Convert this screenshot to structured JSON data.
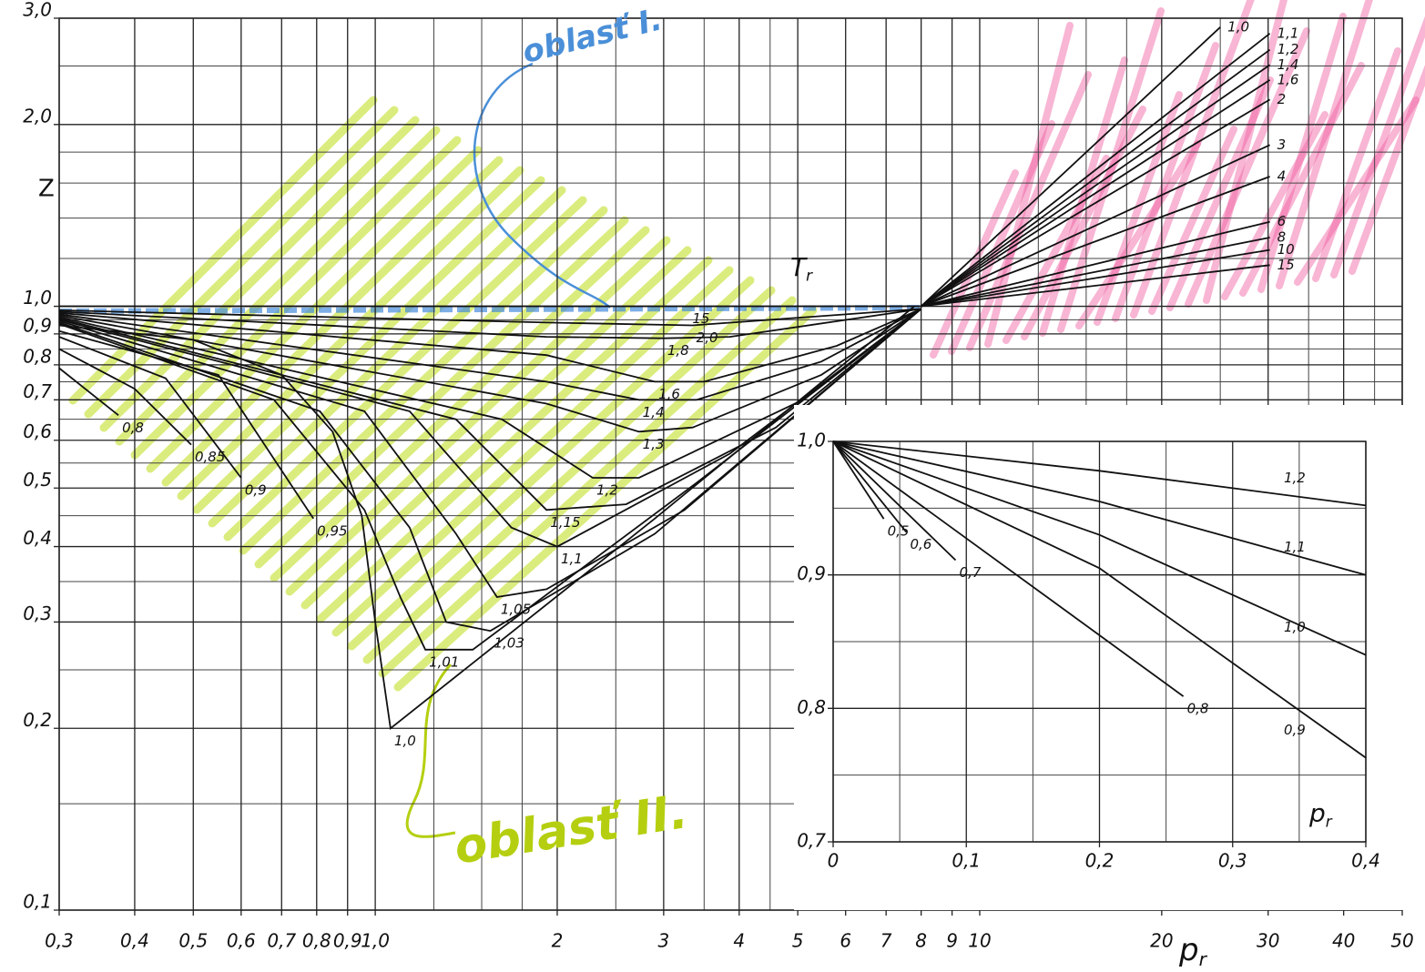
{
  "chart_data": [
    {
      "type": "line",
      "log_x": true,
      "log_y": true,
      "color": "#111",
      "xlim": [
        0.3,
        50
      ],
      "ylim": [
        0.1,
        3.0
      ],
      "xticks": [
        {
          "value": 0.3,
          "label": "0,3"
        },
        {
          "value": 0.4,
          "label": "0,4"
        },
        {
          "value": 0.5,
          "label": "0,5"
        },
        {
          "value": 0.6,
          "label": "0,6"
        },
        {
          "value": 0.7,
          "label": "0,7"
        },
        {
          "value": 0.8,
          "label": "0,8"
        },
        {
          "value": 0.9,
          "label": "0,9"
        },
        {
          "value": 1.0,
          "label": "1,0"
        },
        2,
        3,
        4,
        5,
        6,
        7,
        8,
        9,
        10,
        20,
        30,
        40,
        50
      ],
      "yticks": [
        {
          "value": 0.1,
          "label": "0,1"
        },
        {
          "value": 0.2,
          "label": "0,2"
        },
        {
          "value": 0.3,
          "label": "0,3"
        },
        {
          "value": 0.4,
          "label": "0,4"
        },
        {
          "value": 0.5,
          "label": "0,5"
        },
        {
          "value": 0.6,
          "label": "0,6"
        },
        {
          "value": 0.7,
          "label": "0,7"
        },
        {
          "value": 0.8,
          "label": "0,8"
        },
        {
          "value": 0.9,
          "label": "0,9"
        },
        {
          "value": 1.0,
          "label": "1,0"
        },
        {
          "value": 2.0,
          "label": "2,0"
        },
        {
          "value": 3.0,
          "label": "3,0"
        }
      ],
      "minor_xticks": [
        1.25,
        1.5,
        1.75,
        2.5,
        3.5,
        4.5,
        12.5,
        15,
        17.5,
        25,
        35,
        45
      ],
      "minor_yticks": [
        0.15,
        0.25,
        0.35,
        0.45,
        0.55,
        0.65,
        0.75,
        0.85,
        0.95,
        1.2,
        1.4,
        1.6,
        1.8,
        2.5
      ],
      "xlabel": "p",
      "xlabel_sub": "r",
      "ylabel": "Z",
      "curve_label": "T",
      "curve_label_sub": "r",
      "notes": [
        "oblasť I.",
        "oblasť II."
      ],
      "series": [
        {
          "name": "0,8",
          "x": [
            0.3,
            0.376
          ],
          "values": [
            0.79,
            0.66
          ]
        },
        {
          "name": "0,85",
          "x": [
            0.3,
            0.4,
            0.496
          ],
          "values": [
            0.85,
            0.73,
            0.59
          ]
        },
        {
          "name": "0,9",
          "x": [
            0.3,
            0.45,
            0.6
          ],
          "values": [
            0.89,
            0.76,
            0.52
          ]
        },
        {
          "name": "0,95",
          "x": [
            0.3,
            0.55,
            0.79
          ],
          "values": [
            0.91,
            0.77,
            0.445
          ]
        },
        {
          "name": "1,0",
          "x": [
            0.3,
            0.5,
            0.7,
            0.85,
            0.95,
            1.0,
            1.06,
            2.9,
            7.8
          ],
          "values": [
            0.93,
            0.88,
            0.77,
            0.62,
            0.45,
            0.3,
            0.2,
            0.445,
            1.0
          ]
        },
        {
          "name": "1,01",
          "x": [
            0.3,
            0.68,
            0.96,
            1.1,
            1.21,
            1.45,
            3.4,
            8.0
          ],
          "values": [
            0.935,
            0.7,
            0.46,
            0.33,
            0.27,
            0.27,
            0.51,
            0.99
          ]
        },
        {
          "name": "1,03",
          "x": [
            0.3,
            0.81,
            1.14,
            1.31,
            1.55,
            2.9,
            8.0
          ],
          "values": [
            0.94,
            0.67,
            0.43,
            0.3,
            0.29,
            0.42,
            0.99
          ]
        },
        {
          "name": "1,05",
          "x": [
            0.3,
            0.96,
            1.36,
            1.59,
            1.92,
            3.25,
            8.0
          ],
          "values": [
            0.945,
            0.67,
            0.42,
            0.33,
            0.34,
            0.46,
            0.99
          ]
        },
        {
          "name": "1,1",
          "x": [
            0.3,
            1.14,
            1.68,
            2.0,
            3.86,
            8.0
          ],
          "values": [
            0.95,
            0.67,
            0.43,
            0.4,
            0.57,
            0.99
          ]
        },
        {
          "name": "1,15",
          "x": [
            0.3,
            1.36,
            1.92,
            2.6,
            4.6,
            8.0
          ],
          "values": [
            0.955,
            0.65,
            0.46,
            0.47,
            0.63,
            0.99
          ]
        },
        {
          "name": "1,2",
          "x": [
            0.3,
            1.62,
            2.29,
            2.73,
            5.1,
            8.0
          ],
          "values": [
            0.96,
            0.65,
            0.52,
            0.52,
            0.7,
            0.99
          ]
        },
        {
          "name": "1,3",
          "x": [
            0.3,
            1.92,
            2.73,
            3.35,
            5.47,
            8.0
          ],
          "values": [
            0.965,
            0.69,
            0.62,
            0.63,
            0.77,
            0.99
          ]
        },
        {
          "name": "1,4",
          "x": [
            0.3,
            1.92,
            2.73,
            3.4,
            5.47,
            8.0
          ],
          "values": [
            0.97,
            0.75,
            0.7,
            0.7,
            0.81,
            0.99
          ]
        },
        {
          "name": "1,6",
          "x": [
            0.3,
            1.92,
            2.9,
            3.5,
            5.8,
            8.0
          ],
          "values": [
            0.975,
            0.83,
            0.75,
            0.75,
            0.86,
            0.99
          ]
        },
        {
          "name": "1,8",
          "x": [
            0.3,
            1.92,
            3.0,
            3.86,
            8.0
          ],
          "values": [
            0.98,
            0.89,
            0.885,
            0.89,
            0.99
          ]
        },
        {
          "name": "2,0",
          "x": [
            0.3,
            1.92,
            3.35,
            8.0
          ],
          "values": [
            0.985,
            0.94,
            0.93,
            0.99
          ]
        },
        {
          "name": "15",
          "x": [
            0.3,
            3.3,
            8.0
          ],
          "values": [
            1.0,
            1.0,
            1.0
          ]
        },
        {
          "name": "1,0",
          "x": [
            8.0,
            25.0
          ],
          "values": [
            1.0,
            2.9
          ]
        },
        {
          "name": "1,1",
          "x": [
            8.0,
            30.2
          ],
          "values": [
            1.0,
            2.83
          ]
        },
        {
          "name": "1,2",
          "x": [
            8.0,
            30.2
          ],
          "values": [
            1.0,
            2.66
          ]
        },
        {
          "name": "1,4",
          "x": [
            8.0,
            30.2
          ],
          "values": [
            1.0,
            2.51
          ]
        },
        {
          "name": "1,6",
          "x": [
            8.0,
            30.2
          ],
          "values": [
            1.0,
            2.37
          ]
        },
        {
          "name": "2",
          "x": [
            8.0,
            30.2
          ],
          "values": [
            1.0,
            2.2
          ]
        },
        {
          "name": "3",
          "x": [
            8.0,
            30.2
          ],
          "values": [
            1.0,
            1.85
          ]
        },
        {
          "name": "4",
          "x": [
            8.0,
            30.2
          ],
          "values": [
            1.0,
            1.64
          ]
        },
        {
          "name": "6",
          "x": [
            8.0,
            30.2
          ],
          "values": [
            1.0,
            1.38
          ]
        },
        {
          "name": "8",
          "x": [
            8.0,
            30.2
          ],
          "values": [
            1.0,
            1.3
          ]
        },
        {
          "name": "10",
          "x": [
            8.0,
            30.2
          ],
          "values": [
            1.0,
            1.24
          ]
        },
        {
          "name": "15",
          "x": [
            8.0,
            30.2
          ],
          "values": [
            1.0,
            1.17
          ]
        }
      ]
    },
    {
      "type": "line",
      "log_x": false,
      "log_y": false,
      "color": "#111",
      "xlim": [
        0,
        0.4
      ],
      "ylim": [
        0.7,
        1.0
      ],
      "xticks": [
        0,
        {
          "value": 0.1,
          "label": "0,1"
        },
        {
          "value": 0.2,
          "label": "0,2"
        },
        {
          "value": 0.3,
          "label": "0,3"
        },
        {
          "value": 0.4,
          "label": "0,4"
        }
      ],
      "yticks": [
        {
          "value": 0.7,
          "label": "0,7"
        },
        {
          "value": 0.8,
          "label": "0,8"
        },
        {
          "value": 0.9,
          "label": "0,9"
        },
        {
          "value": 1.0,
          "label": "1,0"
        }
      ],
      "minor_xticks": [
        0.05,
        0.15,
        0.25,
        0.35
      ],
      "minor_yticks": [
        0.75,
        0.85,
        0.95
      ],
      "xlabel": "p",
      "xlabel_sub": "r",
      "series": [
        {
          "name": "0,5",
          "x": [
            0,
            0.038
          ],
          "values": [
            1.0,
            0.942
          ]
        },
        {
          "name": "0,6",
          "x": [
            0,
            0.055
          ],
          "values": [
            1.0,
            0.932
          ]
        },
        {
          "name": "0,7",
          "x": [
            0,
            0.092
          ],
          "values": [
            1.0,
            0.911
          ]
        },
        {
          "name": "0,8",
          "x": [
            0,
            0.263
          ],
          "values": [
            1.0,
            0.809
          ]
        },
        {
          "name": "0,9",
          "x": [
            0,
            0.2,
            0.4
          ],
          "values": [
            1.0,
            0.905,
            0.763
          ]
        },
        {
          "name": "1,0",
          "x": [
            0,
            0.2,
            0.4
          ],
          "values": [
            1.0,
            0.93,
            0.84
          ]
        },
        {
          "name": "1,1",
          "x": [
            0,
            0.2,
            0.4
          ],
          "values": [
            1.0,
            0.955,
            0.9
          ]
        },
        {
          "name": "1,2",
          "x": [
            0,
            0.2,
            0.4
          ],
          "values": [
            1.0,
            0.978,
            0.952
          ]
        }
      ]
    }
  ]
}
